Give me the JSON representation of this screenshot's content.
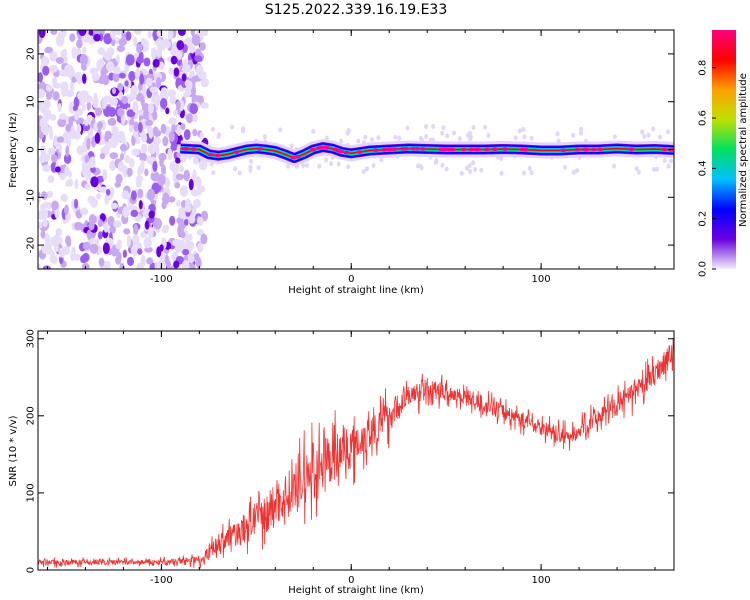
{
  "title": "S125.2022.339.16.19.E33",
  "chart_data": [
    {
      "type": "heatmap",
      "xlabel": "Height of straight line (km)",
      "ylabel": "Frequency (Hz)",
      "xlim": [
        -165,
        170
      ],
      "ylim": [
        -25,
        25
      ],
      "xticks": [
        -100,
        0,
        100
      ],
      "yticks": [
        -20,
        -10,
        0,
        10,
        20
      ],
      "noise_region_x": [
        -165,
        -77
      ],
      "ridge": {
        "x": [
          -90,
          -80,
          -75,
          -70,
          -65,
          -60,
          -55,
          -50,
          -45,
          -40,
          -35,
          -30,
          -25,
          -20,
          -15,
          -10,
          -5,
          0,
          5,
          10,
          20,
          30,
          40,
          50,
          60,
          70,
          80,
          90,
          100,
          110,
          120,
          130,
          140,
          150,
          160,
          170
        ],
        "y": [
          0.2,
          0.0,
          -1.0,
          -1.3,
          -1.0,
          -0.5,
          0.0,
          0.2,
          0.0,
          -0.3,
          -1.0,
          -1.8,
          -1.0,
          0.0,
          0.5,
          0.2,
          -0.5,
          -0.8,
          -0.5,
          -0.2,
          0.0,
          0.2,
          0.1,
          0.0,
          0.0,
          0.0,
          0.1,
          0.0,
          -0.2,
          -0.2,
          0.0,
          0.0,
          0.2,
          0.0,
          0.1,
          -0.1
        ]
      },
      "colorbar": {
        "label": "Normalized spectral amplitude",
        "range": [
          0,
          0.95
        ],
        "ticks": [
          "0.0",
          "0.2",
          "0.4",
          "0.6",
          "0.8"
        ],
        "tick_values": [
          0,
          0.2,
          0.4,
          0.6,
          0.8
        ],
        "colors": [
          "#f2eefa",
          "#6a00e0",
          "#0000ff",
          "#00c0ff",
          "#00e060",
          "#c0e000",
          "#ffa000",
          "#ff0000",
          "#ff0080"
        ]
      },
      "grid": false
    },
    {
      "type": "line",
      "xlabel": "Height of straight line (km)",
      "ylabel": "SNR (10 * v/v)",
      "xlim": [
        -165,
        170
      ],
      "ylim": [
        0,
        310
      ],
      "xticks": [
        -100,
        0,
        100
      ],
      "yticks": [
        0,
        100,
        200,
        300
      ],
      "color": "#ee3333",
      "series": [
        {
          "x": [
            -165,
            -140,
            -120,
            -100,
            -85,
            -78,
            -72,
            -65,
            -60,
            -50,
            -40,
            -30,
            -20,
            -10,
            0,
            10,
            20,
            30,
            40,
            50,
            60,
            70,
            80,
            90,
            100,
            110,
            115,
            120,
            130,
            140,
            150,
            160,
            170
          ],
          "values": [
            10,
            10,
            10,
            10,
            12,
            15,
            30,
            42,
            48,
            65,
            85,
            105,
            125,
            145,
            160,
            180,
            200,
            225,
            235,
            230,
            225,
            215,
            205,
            195,
            185,
            175,
            172,
            180,
            200,
            215,
            230,
            255,
            285
          ],
          "noise_amp": [
            5,
            5,
            5,
            5,
            6,
            10,
            15,
            20,
            25,
            30,
            40,
            45,
            50,
            45,
            40,
            35,
            30,
            20,
            20,
            15,
            15,
            15,
            15,
            15,
            15,
            15,
            15,
            15,
            18,
            20,
            20,
            22,
            25
          ]
        }
      ],
      "grid": false
    }
  ]
}
